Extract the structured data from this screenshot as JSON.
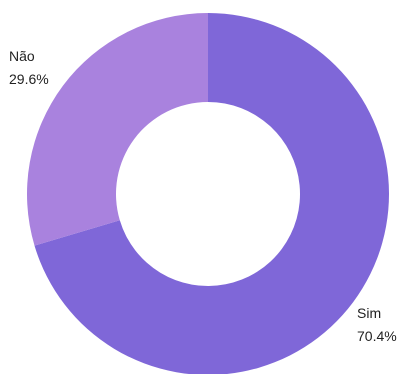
{
  "chart_data": {
    "type": "pie",
    "donut": true,
    "categories": [
      "Sim",
      "Não"
    ],
    "values": [
      70.4,
      29.6
    ],
    "value_labels": [
      "70.4%",
      "29.6%"
    ],
    "colors": [
      "#7f67d8",
      "#a982de"
    ],
    "title": "",
    "legend": "none"
  }
}
